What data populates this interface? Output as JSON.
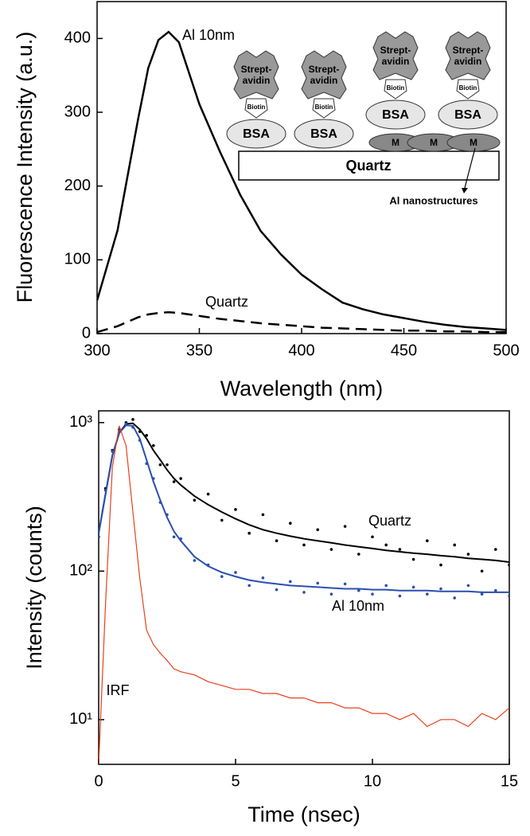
{
  "chart_data": [
    {
      "type": "line",
      "x_label": "Wavelength (nm)",
      "y_label": "Fluorescence Intensity (a.u.)",
      "x": [
        300,
        310,
        320,
        325,
        330,
        335,
        340,
        350,
        360,
        370,
        380,
        390,
        400,
        410,
        420,
        430,
        440,
        450,
        460,
        470,
        480,
        490,
        500
      ],
      "series": [
        {
          "name": "Al 10nm",
          "color": "#000000",
          "line_style": "solid",
          "values": [
            45,
            140,
            290,
            360,
            398,
            409,
            395,
            311,
            247,
            188,
            139,
            107,
            80,
            60,
            42,
            33,
            26,
            21,
            16,
            12,
            9,
            7,
            5
          ]
        },
        {
          "name": "Quartz",
          "color": "#000000",
          "line_style": "dashed",
          "values": [
            2,
            10,
            22,
            26,
            28,
            29,
            28,
            24,
            20,
            17,
            14,
            12,
            10,
            8,
            7,
            6,
            5,
            4,
            4,
            3,
            3,
            2,
            2
          ]
        }
      ],
      "xlim": [
        300,
        500
      ],
      "xticks": [
        300,
        350,
        400,
        450,
        500
      ],
      "ylim": [
        0,
        450
      ],
      "yticks": [
        0,
        100,
        200,
        300,
        400
      ],
      "inset": {
        "protein": [
          "Strept-",
          "avidin"
        ],
        "linker": "Biotin",
        "blocker": "BSA",
        "metal": "M",
        "substrate": "Quartz",
        "arrow_label": "Al nanostructures"
      }
    },
    {
      "type": "line",
      "x_label": "Time (nsec)",
      "y_label": "Intensity (counts)",
      "yscale": "log",
      "x": [
        0,
        0.25,
        0.5,
        0.75,
        1,
        1.25,
        1.5,
        1.75,
        2,
        2.25,
        2.5,
        2.75,
        3,
        3.5,
        4,
        4.5,
        5,
        5.5,
        6,
        6.5,
        7,
        7.5,
        8,
        8.5,
        9,
        9.5,
        10,
        10.5,
        11,
        11.5,
        12,
        12.5,
        13,
        13.5,
        14,
        14.5,
        15
      ],
      "series": [
        {
          "name": "Quartz",
          "color": "#000000",
          "marker": "dot",
          "values": [
            170,
            360,
            650,
            900,
            1000,
            1050,
            870,
            820,
            700,
            520,
            520,
            400,
            420,
            300,
            330,
            220,
            260,
            180,
            240,
            160,
            210,
            150,
            190,
            140,
            200,
            130,
            170,
            150,
            140,
            120,
            160,
            110,
            150,
            130,
            100,
            140,
            110
          ],
          "fit": [
            180,
            330,
            600,
            850,
            980,
            990,
            900,
            780,
            650,
            560,
            480,
            420,
            380,
            320,
            280,
            250,
            225,
            205,
            190,
            180,
            172,
            165,
            160,
            155,
            150,
            146,
            142,
            138,
            135,
            132,
            130,
            127,
            125,
            122,
            120,
            118,
            115
          ]
        },
        {
          "name": "Al 10nm",
          "color": "#2a4fb0",
          "marker": "dot",
          "values": [
            170,
            350,
            640,
            880,
            980,
            930,
            760,
            530,
            420,
            290,
            240,
            170,
            165,
            118,
            110,
            92,
            98,
            80,
            90,
            75,
            85,
            72,
            83,
            70,
            82,
            74,
            70,
            80,
            68,
            78,
            70,
            76,
            66,
            80,
            70,
            74,
            68
          ],
          "fit": [
            180,
            330,
            600,
            850,
            960,
            950,
            780,
            560,
            400,
            300,
            230,
            185,
            160,
            125,
            108,
            98,
            92,
            87,
            84,
            82,
            80,
            79,
            78,
            77,
            76,
            76,
            75,
            75,
            74,
            74,
            74,
            73,
            73,
            73,
            72,
            72,
            72
          ]
        },
        {
          "name": "IRF",
          "color": "#e8401c",
          "values": [
            5,
            60,
            500,
            950,
            700,
            250,
            90,
            40,
            32,
            28,
            25,
            22,
            21,
            20,
            18,
            17,
            16,
            16,
            15,
            15,
            14,
            14,
            13,
            13,
            12,
            12,
            11,
            11,
            10,
            11,
            9,
            10,
            10,
            9,
            11,
            10,
            12
          ]
        }
      ],
      "xlim": [
        0,
        15
      ],
      "xticks": [
        0,
        5,
        10,
        15
      ],
      "ylim": [
        5,
        1200
      ],
      "yticks": [
        {
          "value": 10,
          "label": "10¹"
        },
        {
          "value": 100,
          "label": "10²"
        },
        {
          "value": 1000,
          "label": "10³"
        }
      ]
    }
  ]
}
